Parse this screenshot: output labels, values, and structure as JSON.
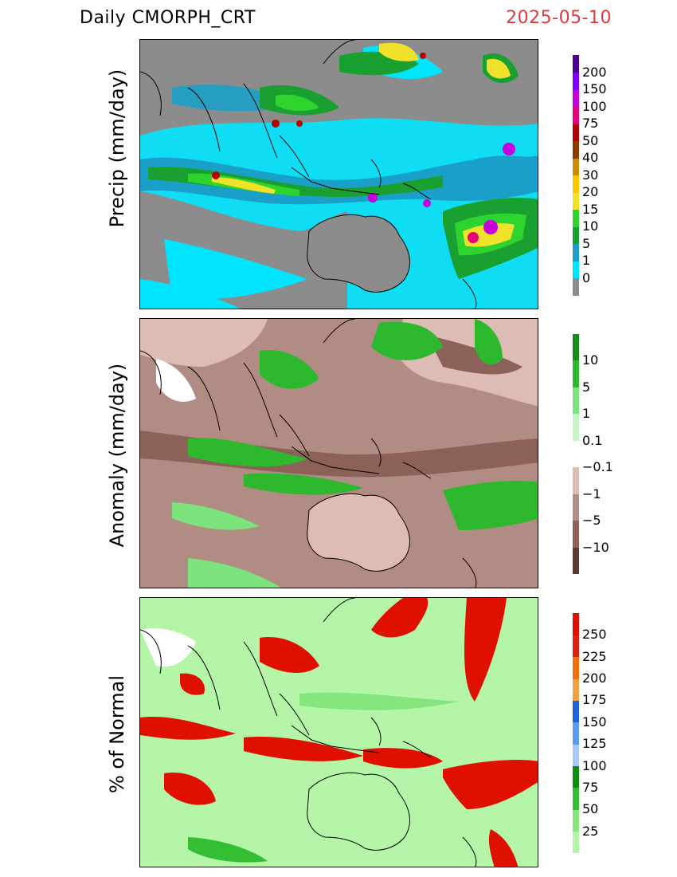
{
  "header": {
    "title": "Daily  CMORPH_CRT",
    "date": "2025-05-10"
  },
  "panels": [
    {
      "id": "precip",
      "ylabel": "Precip (mm/day)",
      "colorbar": {
        "labels": [
          "0",
          "1",
          "5",
          "10",
          "15",
          "20",
          "30",
          "40",
          "50",
          "75",
          "100",
          "150",
          "200"
        ],
        "colors": [
          "#8c8c8c",
          "#00e5ff",
          "#1aa0c8",
          "#1aa031",
          "#2ed42e",
          "#f0e22a",
          "#ffc400",
          "#c88c00",
          "#8c3c00",
          "#b40000",
          "#e6007a",
          "#c800dc",
          "#8000ff",
          "#4b0096"
        ]
      }
    },
    {
      "id": "anomaly",
      "ylabel": "Anomaly (mm/day)",
      "colorbar": {
        "labels": [
          "10",
          "5",
          "1",
          "0.1",
          "−0.1",
          "−1",
          "−5",
          "−10"
        ],
        "colors": [
          "#1a8c1a",
          "#2eb82e",
          "#7de37d",
          "#c8f5c8",
          "#ffffff",
          "#dcbcb4",
          "#b08c84",
          "#8c6258",
          "#5c3a32"
        ]
      }
    },
    {
      "id": "percent",
      "ylabel": "% of Normal",
      "colorbar": {
        "labels": [
          "25",
          "50",
          "75",
          "100",
          "125",
          "150",
          "175",
          "200",
          "225",
          "250"
        ],
        "colors": [
          "#b4f5a8",
          "#84e67c",
          "#34be34",
          "#108c10",
          "#a8c8ff",
          "#5a9bf0",
          "#1e64dc",
          "#f0a040",
          "#f07010",
          "#e02010",
          "#e01000"
        ]
      }
    }
  ]
}
